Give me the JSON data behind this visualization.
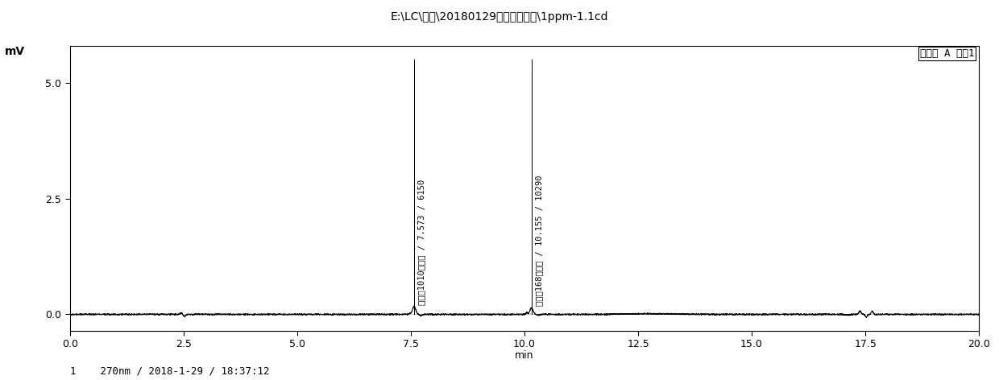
{
  "title": "E:\\LC\\数据\\20180129水解物方法学\\1ppm-1.1cd",
  "xlabel": "min",
  "ylabel": "mV",
  "xlim": [
    0.0,
    20.0
  ],
  "ylim": [
    -0.35,
    5.8
  ],
  "yticks": [
    0.0,
    2.5,
    5.0
  ],
  "xticks": [
    0.0,
    2.5,
    5.0,
    7.5,
    10.0,
    12.5,
    15.0,
    17.5,
    20.0
  ],
  "peak1_time": 7.573,
  "peak1_height": 0.18,
  "peak1_label": "抗氧剂1010水解物 / 7.573 / 6150",
  "peak2_time": 10.155,
  "peak2_height": 0.14,
  "peak2_label": "抗氧剂168水解物 / 10.155 / 10290",
  "detector_label": "検測器 A 通道1",
  "footer_label": "1    270nm / 2018-1-29 / 18:37:12",
  "background_color": "#ffffff",
  "line_color": "#000000",
  "noise_scale": 0.006,
  "anno_line_top": 5.5
}
